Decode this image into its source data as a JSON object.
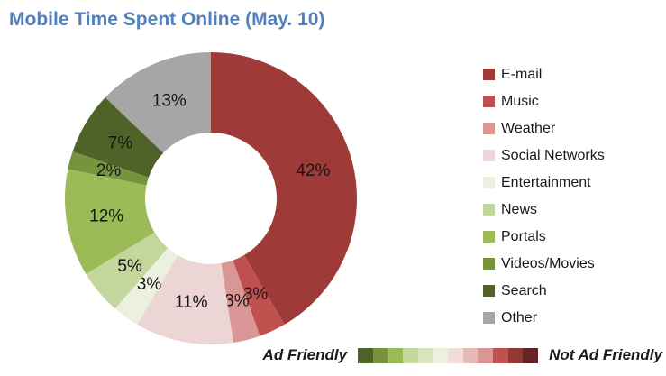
{
  "title": {
    "text": "Mobile Time Spent Online (May. 10)",
    "color": "#4F81BD"
  },
  "chart_data": {
    "type": "donut",
    "title": "Mobile Time Spent Online (May. 10)",
    "legend_position": "right",
    "hole_ratio": 0.45,
    "start_angle_deg": 0,
    "direction": "clockwise",
    "grid": false,
    "categories": [
      "E-mail",
      "Music",
      "Weather",
      "Social Networks",
      "Entertainment",
      "News",
      "Portals",
      "Videos/Movies",
      "Search",
      "Other"
    ],
    "values": [
      42,
      3,
      3,
      11,
      3,
      5,
      12,
      2,
      7,
      13
    ],
    "labels": [
      "42%",
      "3%",
      "3%",
      "11%",
      "3%",
      "5%",
      "12%",
      "2%",
      "7%",
      "13%"
    ],
    "values_unit": "%",
    "colors": [
      "#9E3B39",
      "#C0504D",
      "#D99694",
      "#ECD6D5",
      "#EBF1DE",
      "#C3D69B",
      "#9BBB59",
      "#77933C",
      "#4F6228",
      "#A6A6A6"
    ]
  },
  "ad_scale": {
    "left_label": "Ad Friendly",
    "right_label": "Not Ad Friendly",
    "colors": [
      "#4F6228",
      "#77933C",
      "#9BBB59",
      "#C3D69B",
      "#D7E4BC",
      "#EBF1DE",
      "#F2DCDB",
      "#E6B9B8",
      "#D99694",
      "#C0504D",
      "#953735",
      "#632423"
    ]
  }
}
